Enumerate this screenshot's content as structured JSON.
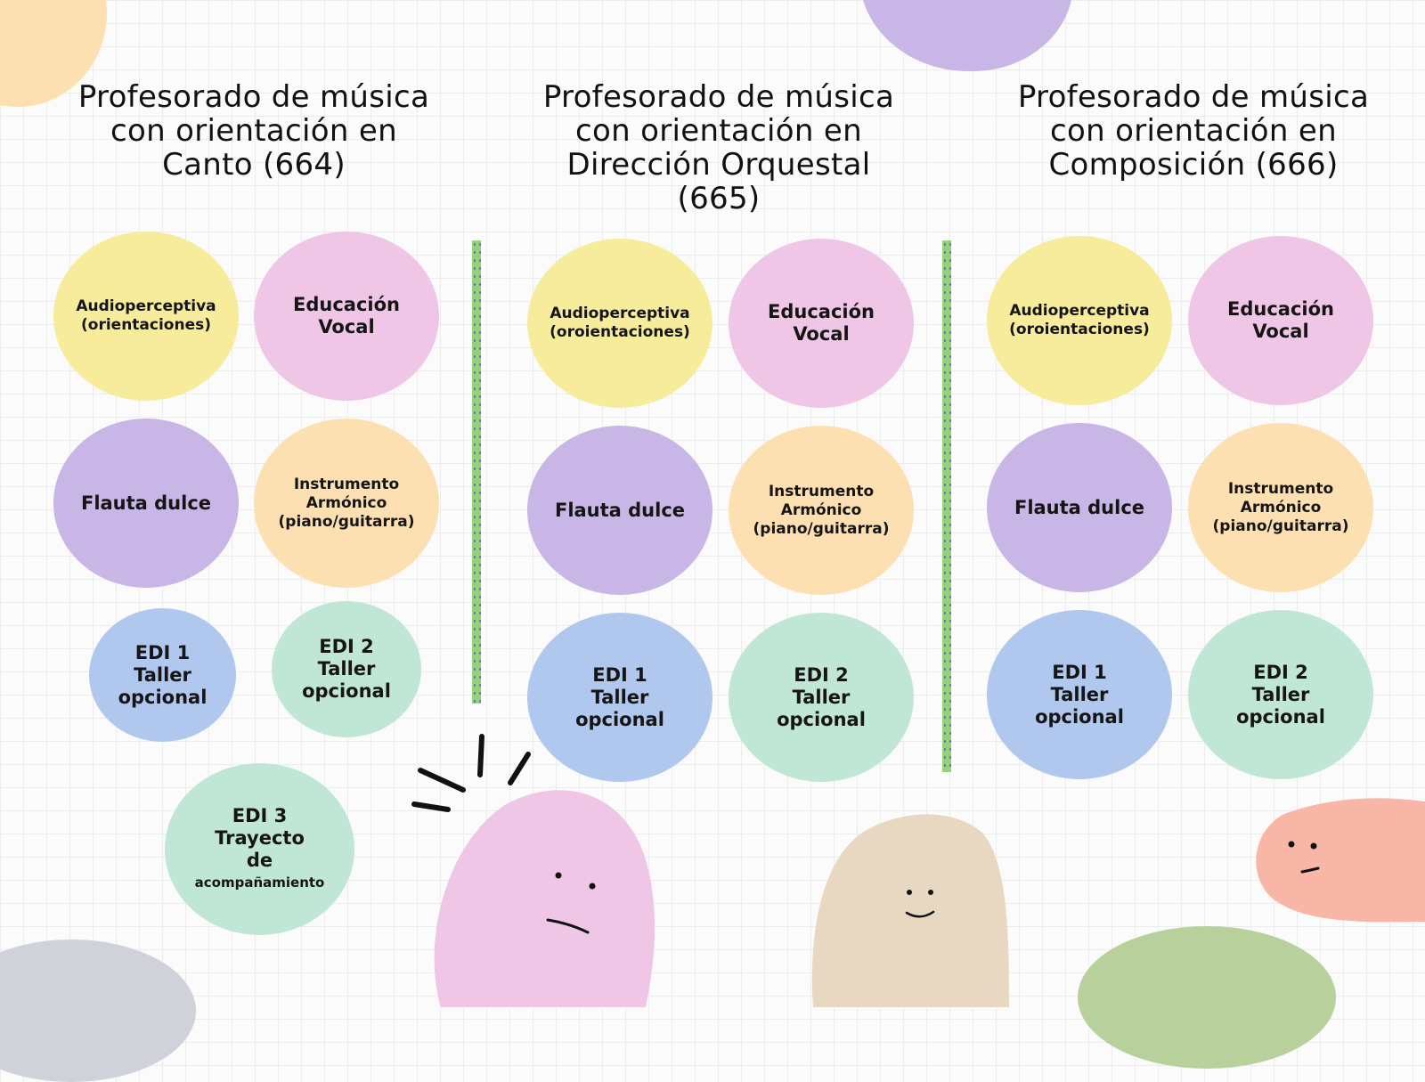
{
  "colors": {
    "yellow": "#f6ec9c",
    "pink": "#efc6e6",
    "purple": "#c8b6e6",
    "orange": "#fde0b1",
    "blue": "#b0c7ee",
    "mint": "#c0e7d6",
    "divider": "#95d07a"
  },
  "columns": [
    {
      "title_lines": [
        "Profesorado de música",
        "con orientación en",
        "Canto (664)"
      ],
      "bubbles": {
        "audio": [
          "Audioperceptiva",
          "(orientaciones)"
        ],
        "vocal": [
          "Educación",
          "Vocal"
        ],
        "flauta": [
          "Flauta dulce"
        ],
        "instrumento": [
          "Instrumento",
          "Armónico",
          "(piano/guitarra)"
        ],
        "edi1": [
          "EDI 1",
          "Taller",
          "opcional"
        ],
        "edi2": [
          "EDI 2",
          "Taller",
          "opcional"
        ],
        "edi3": [
          "EDI 3",
          "Trayecto",
          "de",
          "acompañamiento"
        ]
      }
    },
    {
      "title_lines": [
        "Profesorado de música",
        "con orientación en",
        "Dirección Orquestal",
        "(665)"
      ],
      "bubbles": {
        "audio": [
          "Audioperceptiva",
          "(oroientaciones)"
        ],
        "vocal": [
          "Educación",
          "Vocal"
        ],
        "flauta": [
          "Flauta dulce"
        ],
        "instrumento": [
          "Instrumento",
          "Armónico",
          "(piano/guitarra)"
        ],
        "edi1": [
          "EDI 1",
          "Taller",
          "opcional"
        ],
        "edi2": [
          "EDI 2",
          "Taller",
          "opcional"
        ]
      }
    },
    {
      "title_lines": [
        "Profesorado de música",
        "con orientación en",
        "Composición (666)"
      ],
      "bubbles": {
        "audio": [
          "Audioperceptiva",
          "(oroientaciones)"
        ],
        "vocal": [
          "Educación",
          "Vocal"
        ],
        "flauta": [
          "Flauta dulce"
        ],
        "instrumento": [
          "Instrumento",
          "Armónico",
          "(piano/guitarra)"
        ],
        "edi1": [
          "EDI 1",
          "Taller",
          "opcional"
        ],
        "edi2": [
          "EDI 2",
          "Taller",
          "opcional"
        ]
      }
    }
  ]
}
